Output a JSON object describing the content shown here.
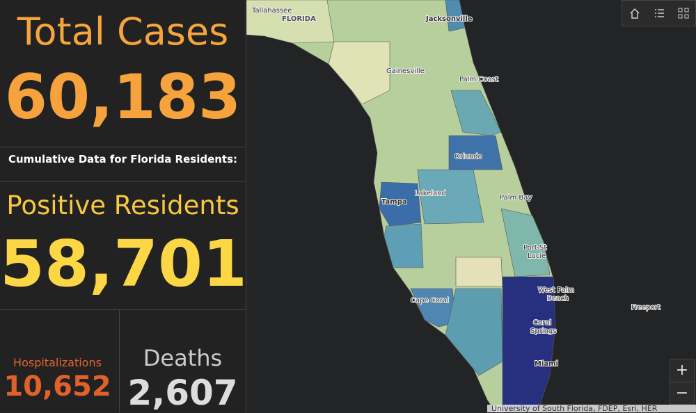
{
  "panel": {
    "total_title": "Total Cases",
    "total_value": "60,183",
    "subtitle": "Cumulative Data for Florida Residents:",
    "positive_title": "Positive Residents",
    "positive_value": "58,701",
    "hosp_title": "Hospitalizations",
    "hosp_value": "10,652",
    "deaths_title": "Deaths",
    "deaths_value": "2,607"
  },
  "map": {
    "labels": [
      "Tallahassee",
      "FLORIDA",
      "Jacksonville",
      "Gainesville",
      "Palm Coast",
      "Orlando",
      "Lakeland",
      "Tampa",
      "Palm Bay",
      "Port St",
      "Lucie",
      "West Palm",
      "Beach",
      "Coral",
      "Springs",
      "Miami",
      "Cape Coral",
      "Freeport"
    ],
    "attribution": "University of South Florida, FDEP, Esri, HER",
    "zoom_in": "+",
    "zoom_out": "−"
  }
}
